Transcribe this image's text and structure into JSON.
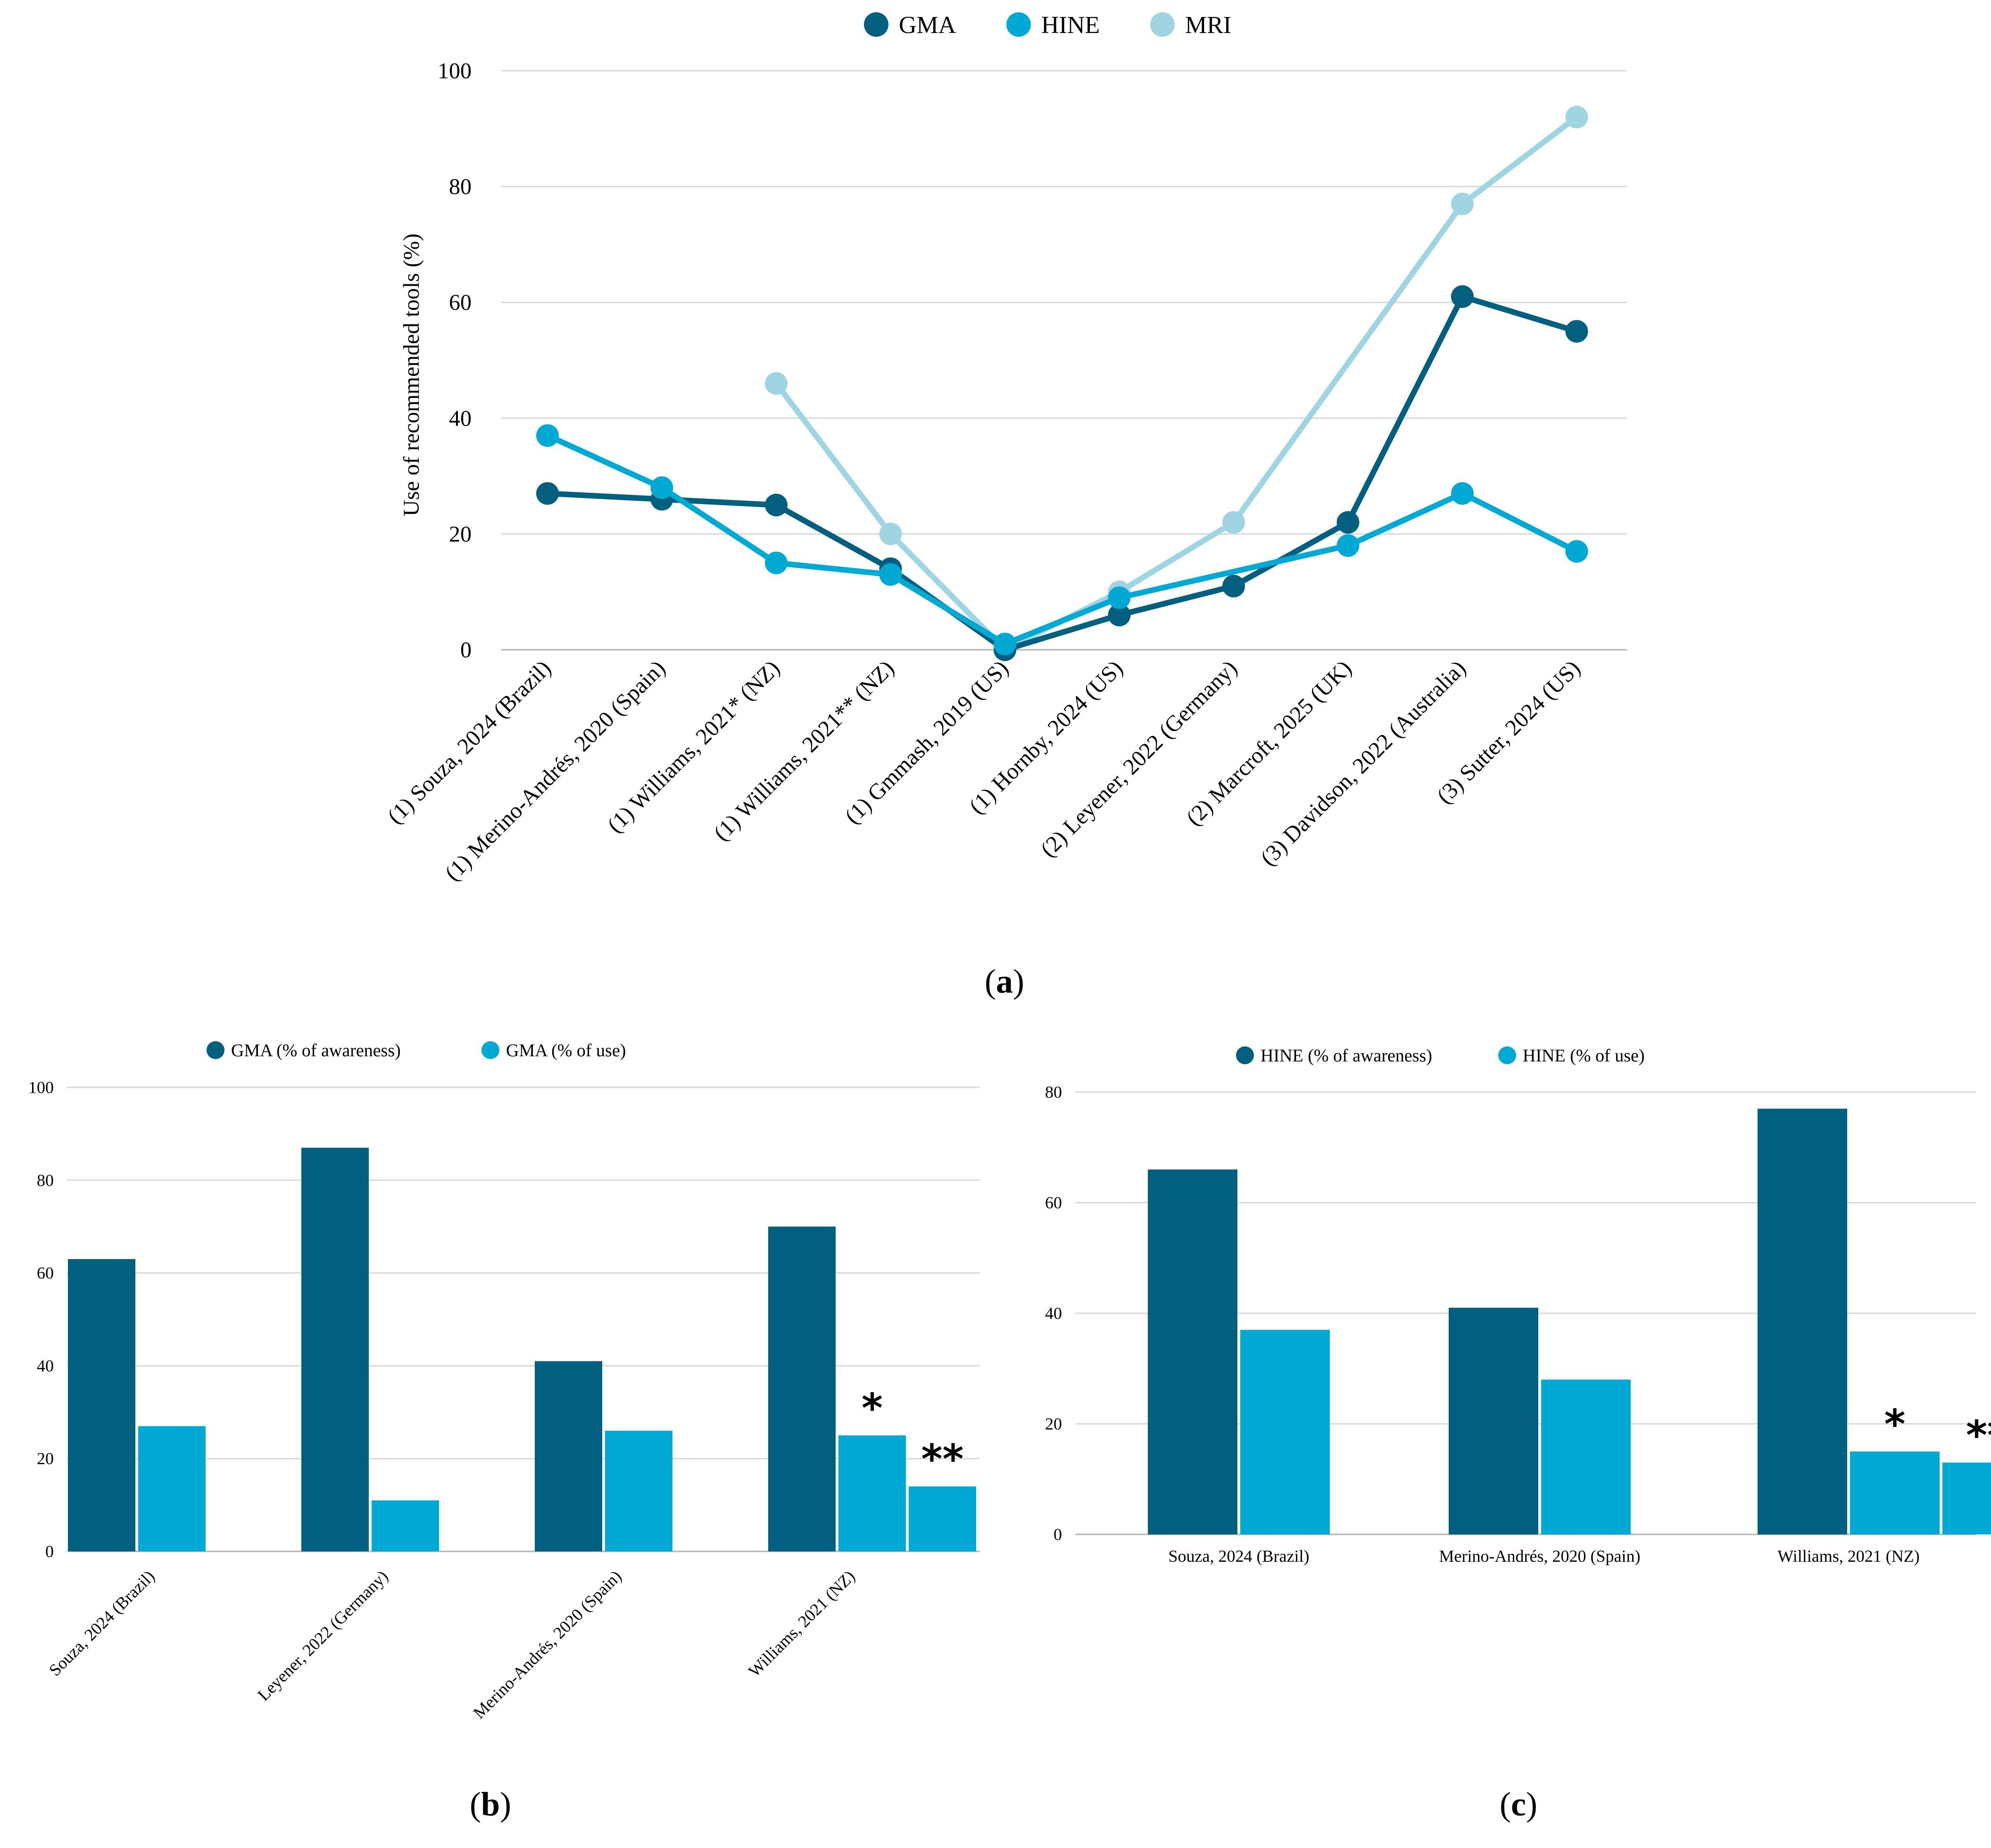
{
  "colors": {
    "dark": "#005f7f",
    "medium": "#00a9d4",
    "light": "#9fd4e2"
  },
  "chart_data": [
    {
      "id": "a",
      "type": "line",
      "caption": "a",
      "ylabel": "Use of recommended tools (%)",
      "ylim": [
        0,
        100
      ],
      "yticks": [
        0,
        20,
        40,
        60,
        80,
        100
      ],
      "grid": true,
      "legend_position": "top-center",
      "categories": [
        "(1) Souza, 2024 (Brazil)",
        "(1) Merino-Andrés, 2020 (Spain)",
        "(1) Williams, 2021* (NZ)",
        "(1) Williams, 2021** (NZ)",
        "(1) Gmmash, 2019 (US)",
        "(1) Hornby, 2024 (US)",
        "(2) Leyener, 2022 (Germany)",
        "(2) Marcroft, 2025 (UK)",
        "(3) Davidson, 2022 (Australia)",
        "(3) Sutter, 2024 (US)"
      ],
      "series": [
        {
          "name": "GMA",
          "color": "#005f7f",
          "values": [
            27,
            26,
            25,
            14,
            0,
            6,
            11,
            22,
            61,
            55
          ]
        },
        {
          "name": "HINE",
          "color": "#00a9d4",
          "values": [
            37,
            28,
            15,
            13,
            1,
            9,
            null,
            18,
            27,
            17
          ]
        },
        {
          "name": "MRI",
          "color": "#9fd4e2",
          "values": [
            null,
            null,
            46,
            20,
            0,
            10,
            22,
            null,
            77,
            92
          ]
        }
      ]
    },
    {
      "id": "b",
      "type": "bar",
      "caption": "b",
      "ylim": [
        0,
        100
      ],
      "yticks": [
        0,
        20,
        40,
        60,
        80,
        100
      ],
      "grid": true,
      "legend_position": "top-center",
      "categories": [
        "Souza, 2024 (Brazil)",
        "Leyener, 2022 (Germany)",
        "Merino-Andrés, 2020 (Spain)",
        "Williams, 2021 (NZ)"
      ],
      "series": [
        {
          "name": "GMA (% of awareness)",
          "color": "#005f7f",
          "values": [
            63,
            87,
            41,
            70
          ]
        },
        {
          "name": "GMA (% of use)",
          "color": "#00a9d4",
          "values": [
            27,
            11,
            26,
            25
          ]
        }
      ],
      "extra_bar": {
        "category_index": 3,
        "value": 14,
        "color": "#00a9d4"
      },
      "annotations": [
        "*",
        "**"
      ]
    },
    {
      "id": "c",
      "type": "bar",
      "caption": "c",
      "ylim": [
        0,
        80
      ],
      "yticks": [
        0,
        20,
        40,
        60,
        80
      ],
      "grid": true,
      "legend_position": "top-center",
      "categories": [
        "Souza, 2024 (Brazil)",
        "Merino-Andrés, 2020 (Spain)",
        "Williams, 2021 (NZ)"
      ],
      "series": [
        {
          "name": "HINE (% of awareness)",
          "color": "#005f7f",
          "values": [
            66,
            41,
            77
          ]
        },
        {
          "name": "HINE (% of use)",
          "color": "#00a9d4",
          "values": [
            37,
            28,
            15
          ]
        }
      ],
      "extra_bar": {
        "category_index": 2,
        "value": 13,
        "color": "#00a9d4"
      },
      "annotations": [
        "*",
        "**"
      ]
    }
  ]
}
